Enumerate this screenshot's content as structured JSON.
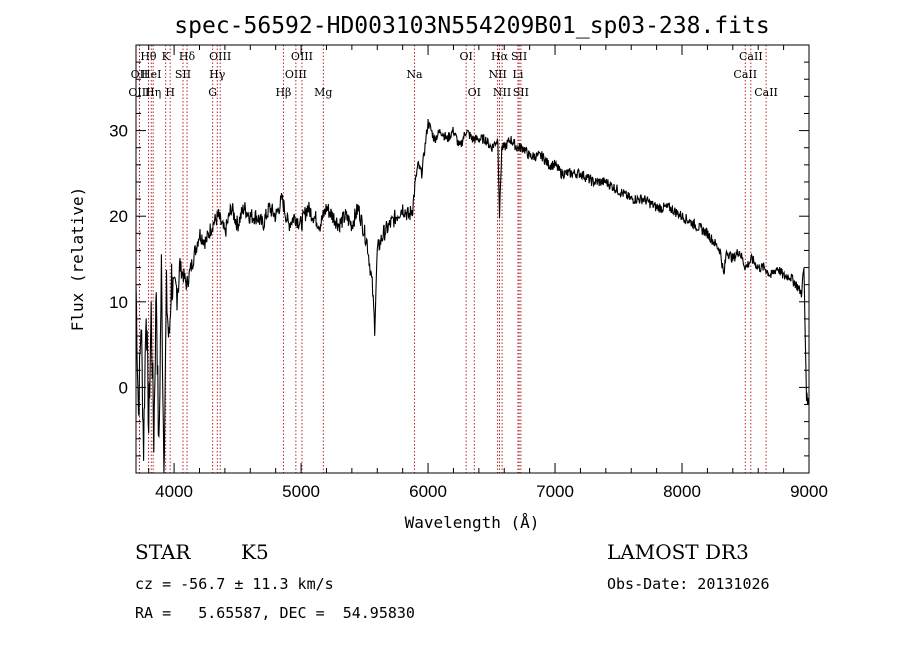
{
  "chart_data": {
    "type": "line",
    "title": "spec-56592-HD003103N554209B01_sp03-238.fits",
    "xlabel": "Wavelength (Å)",
    "ylabel": "Flux (relative)",
    "xlim": [
      3700,
      9000
    ],
    "ylim": [
      -10,
      40
    ],
    "xticks": [
      4000,
      5000,
      6000,
      7000,
      8000,
      9000
    ],
    "yticks": [
      0,
      10,
      20,
      30
    ],
    "series": [
      {
        "name": "flux",
        "x": [
          3700,
          3720,
          3740,
          3760,
          3780,
          3800,
          3820,
          3840,
          3860,
          3880,
          3900,
          3920,
          3940,
          3960,
          3980,
          4000,
          4050,
          4100,
          4150,
          4200,
          4250,
          4300,
          4350,
          4400,
          4450,
          4500,
          4550,
          4600,
          4650,
          4700,
          4750,
          4800,
          4850,
          4900,
          4950,
          5000,
          5050,
          5100,
          5150,
          5200,
          5250,
          5300,
          5350,
          5400,
          5450,
          5500,
          5520,
          5560,
          5580,
          5600,
          5650,
          5700,
          5750,
          5800,
          5850,
          5880,
          5900,
          5920,
          5950,
          6000,
          6050,
          6100,
          6150,
          6200,
          6250,
          6300,
          6350,
          6400,
          6450,
          6500,
          6550,
          6563,
          6580,
          6600,
          6650,
          6700,
          6750,
          6800,
          6850,
          6900,
          6950,
          7000,
          7050,
          7100,
          7200,
          7300,
          7400,
          7500,
          7600,
          7700,
          7800,
          7900,
          8000,
          8100,
          8200,
          8300,
          8330,
          8350,
          8400,
          8450,
          8500,
          8550,
          8600,
          8650,
          8700,
          8750,
          8800,
          8850,
          8900,
          8940,
          8960,
          8980,
          9000
        ],
        "y": [
          12,
          -3,
          8,
          -7,
          10,
          -5,
          9,
          -6,
          12,
          -8,
          14,
          -9,
          11,
          5,
          13,
          10,
          14,
          12,
          15,
          18,
          17,
          19,
          20,
          18,
          21,
          19,
          21,
          20,
          20,
          19,
          21,
          20,
          22,
          19,
          20,
          19,
          21,
          20,
          19,
          21,
          20,
          19,
          20,
          19,
          21,
          18,
          17,
          12,
          7,
          16,
          18,
          19,
          20,
          21,
          20,
          21,
          24,
          26,
          25,
          31,
          29,
          30,
          29,
          30,
          28,
          30,
          29,
          29,
          29,
          28,
          29,
          20,
          28,
          28,
          29,
          28,
          28,
          27,
          27,
          27,
          26,
          26,
          25,
          25,
          25,
          24,
          24,
          23,
          22,
          22,
          21,
          21,
          20,
          19,
          18,
          16,
          13,
          16,
          15,
          16,
          14,
          15,
          14,
          14,
          13,
          14,
          13,
          13,
          12,
          11,
          14,
          -1,
          -2
        ]
      }
    ],
    "spectral_lines": [
      {
        "label": "Hθ",
        "x": 3798,
        "row": 0
      },
      {
        "label": "OII",
        "x": 3727,
        "row": 1
      },
      {
        "label": "OIII",
        "x": 3727,
        "row": 2
      },
      {
        "label": "HeI",
        "x": 3820,
        "row": 1
      },
      {
        "label": "Hη",
        "x": 3835,
        "row": 2
      },
      {
        "label": "K",
        "x": 3934,
        "row": 0
      },
      {
        "label": "SII",
        "x": 4070,
        "row": 1
      },
      {
        "label": "H",
        "x": 3969,
        "row": 2
      },
      {
        "label": "Hδ",
        "x": 4102,
        "row": 0
      },
      {
        "label": "OIII",
        "x": 4363,
        "row": 0
      },
      {
        "label": "Hγ",
        "x": 4340,
        "row": 1
      },
      {
        "label": "G",
        "x": 4304,
        "row": 2
      },
      {
        "label": "Hβ",
        "x": 4861,
        "row": 2
      },
      {
        "label": "OIII",
        "x": 5007,
        "row": 0
      },
      {
        "label": "OIII",
        "x": 4959,
        "row": 1
      },
      {
        "label": "Mg",
        "x": 5175,
        "row": 2
      },
      {
        "label": "Na",
        "x": 5893,
        "row": 1
      },
      {
        "label": "OI",
        "x": 6300,
        "row": 0
      },
      {
        "label": "OI",
        "x": 6364,
        "row": 2
      },
      {
        "label": "Hα",
        "x": 6563,
        "row": 0
      },
      {
        "label": "SII",
        "x": 6717,
        "row": 0
      },
      {
        "label": "NII",
        "x": 6548,
        "row": 1
      },
      {
        "label": "Li",
        "x": 6708,
        "row": 1
      },
      {
        "label": "NII",
        "x": 6583,
        "row": 2
      },
      {
        "label": "SII",
        "x": 6731,
        "row": 2
      },
      {
        "label": "CaII",
        "x": 8542,
        "row": 0
      },
      {
        "label": "CaII",
        "x": 8498,
        "row": 1
      },
      {
        "label": "CaII",
        "x": 8662,
        "row": 2
      }
    ],
    "dotted_line_color": "#b01010",
    "line_color": "#000000"
  },
  "info": {
    "class_label": "STAR",
    "subclass_label": "K5",
    "survey_label": "LAMOST DR3",
    "cz_text": "cz = -56.7 ± 11.3 km/s",
    "obs_date": "Obs-Date: 20131026",
    "coords_text": "RA =   5.65587, DEC =  54.95830"
  }
}
